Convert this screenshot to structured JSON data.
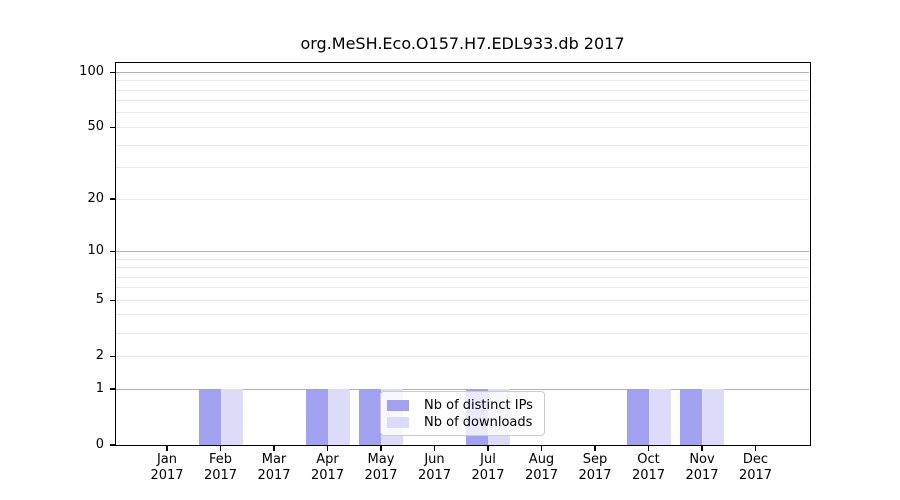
{
  "chart_data": {
    "type": "bar",
    "title": "org.MeSH.Eco.O157.H7.EDL933.db 2017",
    "categories": [
      "Jan 2017",
      "Feb 2017",
      "Mar 2017",
      "Apr 2017",
      "May 2017",
      "Jun 2017",
      "Jul 2017",
      "Aug 2017",
      "Sep 2017",
      "Oct 2017",
      "Nov 2017",
      "Dec 2017"
    ],
    "series": [
      {
        "name": "Nb of distinct IPs",
        "color": "#a1a1f0",
        "values": [
          0,
          1,
          0,
          1,
          1,
          0,
          1,
          0,
          0,
          1,
          1,
          0
        ]
      },
      {
        "name": "Nb of downloads",
        "color": "#dcdcf8",
        "values": [
          0,
          1,
          0,
          1,
          1,
          0,
          1,
          0,
          0,
          1,
          1,
          0
        ]
      }
    ],
    "xlabel": "",
    "ylabel": "",
    "y_scale": "log1p",
    "ylim": [
      0,
      113
    ],
    "y_ticks": [
      100,
      50,
      20,
      10,
      5,
      2,
      1,
      0
    ],
    "y_major_gridlines": [
      1,
      10,
      100
    ],
    "y_minor_gridlines": [
      2,
      3,
      4,
      5,
      6,
      7,
      8,
      9,
      20,
      30,
      40,
      50,
      60,
      70,
      80,
      90
    ],
    "grid": true,
    "legend_position": "inside-bottom-center"
  },
  "colors": {
    "background": "#ffffff",
    "axes": "#000000",
    "grid_major": "#b3b3b3",
    "grid_minor": "#e7e7e7",
    "bar_distinct_ips": "#a1a1f0",
    "bar_downloads": "#dcdcf8",
    "legend_border": "#cccccc"
  }
}
